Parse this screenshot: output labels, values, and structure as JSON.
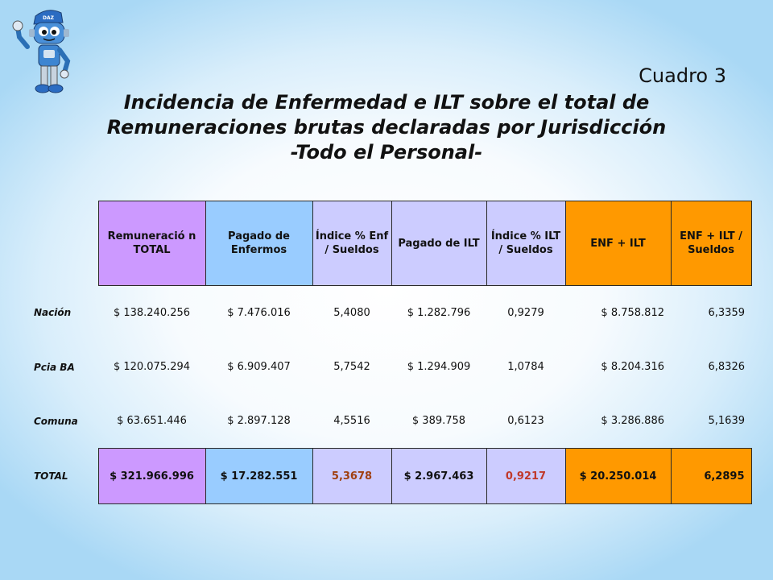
{
  "heading": {
    "cuadro": "Cuadro 3",
    "line1": "Incidencia de Enfermedad e ILT sobre el total de",
    "line2": "Remuneraciones brutas declaradas por Jurisdicción",
    "line3": "-Todo el Personal-"
  },
  "mascot": {
    "cap_text": "DAZ",
    "icon": "robot-mascot-icon"
  },
  "table": {
    "headers": [
      {
        "label": "Remuneració n TOTAL",
        "color": "#cc99ff"
      },
      {
        "label": "Pagado de Enfermos",
        "color": "#99ccff"
      },
      {
        "label": "Índice % Enf / Sueldos",
        "color": "#ccccff"
      },
      {
        "label": "Pagado de ILT",
        "color": "#ccccff"
      },
      {
        "label": "Índice % ILT / Sueldos",
        "color": "#ccccff"
      },
      {
        "label": "ENF + ILT",
        "color": "#ff9900"
      },
      {
        "label": "ENF + ILT / Sueldos",
        "color": "#ff9900"
      }
    ],
    "rows": [
      {
        "label": "Nación",
        "values": [
          "$ 138.240.256",
          "$ 7.476.016",
          "5,4080",
          "$ 1.282.796",
          "0,9279",
          "$ 8.758.812",
          "6,3359"
        ]
      },
      {
        "label": "Pcia BA",
        "values": [
          "$ 120.075.294",
          "$ 6.909.407",
          "5,7542",
          "$ 1.294.909",
          "1,0784",
          "$ 8.204.316",
          "6,8326"
        ]
      },
      {
        "label": "Comuna",
        "values": [
          "$ 63.651.446",
          "$ 2.897.128",
          "4,5516",
          "$ 389.758",
          "0,6123",
          "$ 3.286.886",
          "5,1639"
        ]
      }
    ],
    "total": {
      "label": "TOTAL",
      "values": [
        "$ 321.966.996",
        "$ 17.282.551",
        "5,3678",
        "$ 2.967.463",
        "0,9217",
        "$ 20.250.014",
        "6,2895"
      ]
    }
  }
}
